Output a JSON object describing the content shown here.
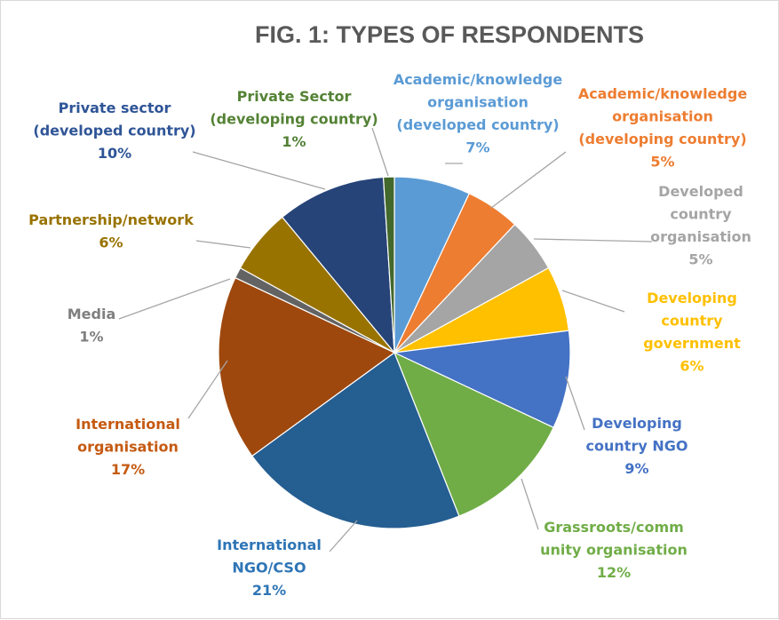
{
  "chart_data": {
    "type": "pie",
    "title": "FIG. 1: TYPES OF RESPONDENTS",
    "slices": [
      {
        "lines": [
          "Academic/knowledge",
          "organisation",
          "(developed country)"
        ],
        "pct": "7%",
        "value": 7,
        "color": "#5b9bd5"
      },
      {
        "lines": [
          "Academic/knowledge",
          "organisation",
          "(developing country)"
        ],
        "pct": "5%",
        "value": 5,
        "color": "#ed7d31"
      },
      {
        "lines": [
          "Developed",
          "country",
          "organisation"
        ],
        "pct": "5%",
        "value": 5,
        "color": "#a5a5a5"
      },
      {
        "lines": [
          "Developing",
          "country",
          "government"
        ],
        "pct": "6%",
        "value": 6,
        "color": "#ffc000"
      },
      {
        "lines": [
          "Developing",
          "country NGO"
        ],
        "pct": "9%",
        "value": 9,
        "color": "#4472c4"
      },
      {
        "lines": [
          "Grassroots/comm",
          "unity organisation"
        ],
        "pct": "12%",
        "value": 12,
        "color": "#70ad47"
      },
      {
        "lines": [
          "International",
          "NGO/CSO"
        ],
        "pct": "21%",
        "value": 21,
        "color": "#255e91"
      },
      {
        "lines": [
          "International",
          "organisation"
        ],
        "pct": "17%",
        "value": 17,
        "color": "#9e480e"
      },
      {
        "lines": [
          "Media"
        ],
        "pct": "1%",
        "value": 1,
        "color": "#636363"
      },
      {
        "lines": [
          "Partnership/network"
        ],
        "pct": "6%",
        "value": 6,
        "color": "#997300"
      },
      {
        "lines": [
          "Private sector",
          "(developed country)"
        ],
        "pct": "10%",
        "value": 10,
        "color": "#264478"
      },
      {
        "lines": [
          "Private Sector",
          "(developing country)"
        ],
        "pct": "1%",
        "value": 1,
        "color": "#43682b"
      }
    ],
    "label_colors": {
      "Academic/knowledge organisation (developed country)": "#5b9bd5",
      "Academic/knowledge organisation (developing country)": "#ed7d31",
      "Developed country organisation": "#a5a5a5",
      "Developing country government": "#ffc000",
      "Developing country NGO": "#4472c4",
      "Grassroots/community organisation": "#70ad47",
      "International NGO/CSO": "#2e75b6",
      "International organisation": "#c55a11",
      "Media": "#7f7f7f",
      "Partnership/network": "#997300",
      "Private sector (developed country)": "#2f5597",
      "Private Sector (developing country)": "#548235"
    }
  }
}
